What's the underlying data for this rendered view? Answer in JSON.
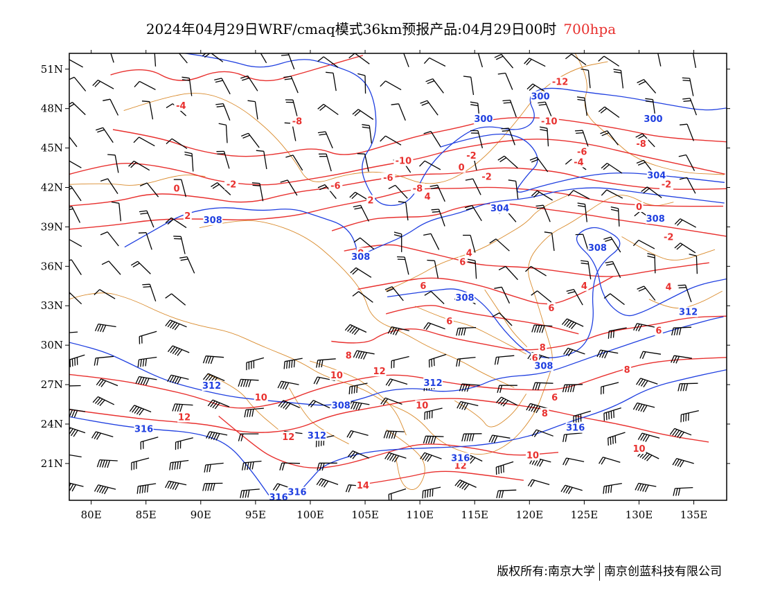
{
  "title": {
    "main": "2024年04月29日WRF/cmaq模式36km预报产品:04月29日00时",
    "level": "700hpa"
  },
  "copyright": {
    "left": "版权所有:南京大学",
    "right": "南京创蓝科技有限公司"
  },
  "map": {
    "lon_range": [
      78,
      138
    ],
    "lat_range": [
      18.2,
      52.2
    ],
    "lon_ticks": [
      {
        "value": 80,
        "label": "80E"
      },
      {
        "value": 85,
        "label": "85E"
      },
      {
        "value": 90,
        "label": "90E"
      },
      {
        "value": 95,
        "label": "95E"
      },
      {
        "value": 100,
        "label": "100E"
      },
      {
        "value": 105,
        "label": "105E"
      },
      {
        "value": 110,
        "label": "110E"
      },
      {
        "value": 115,
        "label": "115E"
      },
      {
        "value": 120,
        "label": "120E"
      },
      {
        "value": 125,
        "label": "125E"
      },
      {
        "value": 130,
        "label": "130E"
      },
      {
        "value": 135,
        "label": "135E"
      }
    ],
    "lat_ticks": [
      {
        "value": 51,
        "label": "51N"
      },
      {
        "value": 48,
        "label": "48N"
      },
      {
        "value": 45,
        "label": "45N"
      },
      {
        "value": 42,
        "label": "42N"
      },
      {
        "value": 39,
        "label": "39N"
      },
      {
        "value": 36,
        "label": "36N"
      },
      {
        "value": 33,
        "label": "33N"
      },
      {
        "value": 30,
        "label": "30N"
      },
      {
        "value": 27,
        "label": "27N"
      },
      {
        "value": 24,
        "label": "24N"
      },
      {
        "value": 21,
        "label": "21N"
      }
    ],
    "colors": {
      "temperature": "#e8302e",
      "geopotential": "#1f3fe0",
      "border": "#d98a2b",
      "wind": "#000000",
      "level_text": "#e8302e"
    },
    "temperature_labels": [
      {
        "text": "-4",
        "lon": 88.2,
        "lat": 48.2
      },
      {
        "text": "-8",
        "lon": 98.8,
        "lat": 47.0
      },
      {
        "text": "-12",
        "lon": 122.8,
        "lat": 50.0
      },
      {
        "text": "-10",
        "lon": 121.8,
        "lat": 47.0
      },
      {
        "text": "-8",
        "lon": 130.2,
        "lat": 45.3
      },
      {
        "text": "-6",
        "lon": 124.8,
        "lat": 44.7
      },
      {
        "text": "-10",
        "lon": 108.5,
        "lat": 44.0
      },
      {
        "text": "-2",
        "lon": 114.7,
        "lat": 44.4
      },
      {
        "text": "-4",
        "lon": 124.5,
        "lat": 43.9
      },
      {
        "text": "0",
        "lon": 113.8,
        "lat": 43.5
      },
      {
        "text": "-2",
        "lon": 116.1,
        "lat": 42.8
      },
      {
        "text": "-6",
        "lon": 107.1,
        "lat": 42.7
      },
      {
        "text": "-6",
        "lon": 102.3,
        "lat": 42.1
      },
      {
        "text": "-8",
        "lon": 109.8,
        "lat": 41.9
      },
      {
        "text": "-2",
        "lon": 132.5,
        "lat": 42.2
      },
      {
        "text": "-2",
        "lon": 92.8,
        "lat": 42.2
      },
      {
        "text": "0",
        "lon": 87.8,
        "lat": 41.9
      },
      {
        "text": "4",
        "lon": 110.7,
        "lat": 41.3
      },
      {
        "text": "2",
        "lon": 105.5,
        "lat": 41.0
      },
      {
        "text": "2",
        "lon": 88.8,
        "lat": 39.8
      },
      {
        "text": "0",
        "lon": 130.0,
        "lat": 40.5
      },
      {
        "text": "-2",
        "lon": 132.7,
        "lat": 38.2
      },
      {
        "text": "0",
        "lon": 104.6,
        "lat": 37.0
      },
      {
        "text": "4",
        "lon": 114.5,
        "lat": 37.0
      },
      {
        "text": "6",
        "lon": 113.9,
        "lat": 36.3
      },
      {
        "text": "6",
        "lon": 110.3,
        "lat": 34.5
      },
      {
        "text": "4",
        "lon": 125.0,
        "lat": 34.5
      },
      {
        "text": "4",
        "lon": 132.7,
        "lat": 34.4
      },
      {
        "text": "6",
        "lon": 122.0,
        "lat": 32.8
      },
      {
        "text": "6",
        "lon": 112.7,
        "lat": 31.8
      },
      {
        "text": "6",
        "lon": 131.8,
        "lat": 31.1
      },
      {
        "text": "8",
        "lon": 121.2,
        "lat": 29.8
      },
      {
        "text": "8",
        "lon": 103.5,
        "lat": 29.2
      },
      {
        "text": "6",
        "lon": 120.5,
        "lat": 29.0
      },
      {
        "text": "8",
        "lon": 128.9,
        "lat": 28.1
      },
      {
        "text": "12",
        "lon": 106.3,
        "lat": 28.0
      },
      {
        "text": "10",
        "lon": 102.4,
        "lat": 27.7
      },
      {
        "text": "6",
        "lon": 122.3,
        "lat": 26.0
      },
      {
        "text": "10",
        "lon": 95.5,
        "lat": 26.0
      },
      {
        "text": "12",
        "lon": 88.5,
        "lat": 24.5
      },
      {
        "text": "10",
        "lon": 110.2,
        "lat": 25.4
      },
      {
        "text": "8",
        "lon": 121.4,
        "lat": 24.8
      },
      {
        "text": "12",
        "lon": 98.0,
        "lat": 23.0
      },
      {
        "text": "10",
        "lon": 130.0,
        "lat": 22.1
      },
      {
        "text": "10",
        "lon": 120.3,
        "lat": 21.6
      },
      {
        "text": "12",
        "lon": 113.7,
        "lat": 20.8
      },
      {
        "text": "14",
        "lon": 104.8,
        "lat": 19.3
      }
    ],
    "geopotential_labels": [
      {
        "text": "300",
        "lon": 121.0,
        "lat": 48.9
      },
      {
        "text": "300",
        "lon": 115.8,
        "lat": 47.2
      },
      {
        "text": "300",
        "lon": 131.3,
        "lat": 47.2
      },
      {
        "text": "304",
        "lon": 131.6,
        "lat": 42.9
      },
      {
        "text": "308",
        "lon": 91.1,
        "lat": 39.5
      },
      {
        "text": "304",
        "lon": 117.3,
        "lat": 40.4
      },
      {
        "text": "308",
        "lon": 131.5,
        "lat": 39.6
      },
      {
        "text": "308",
        "lon": 104.6,
        "lat": 36.7
      },
      {
        "text": "308",
        "lon": 126.2,
        "lat": 37.4
      },
      {
        "text": "308",
        "lon": 114.1,
        "lat": 33.6
      },
      {
        "text": "312",
        "lon": 134.5,
        "lat": 32.5
      },
      {
        "text": "308",
        "lon": 121.3,
        "lat": 28.4
      },
      {
        "text": "312",
        "lon": 91.0,
        "lat": 26.9
      },
      {
        "text": "312",
        "lon": 111.2,
        "lat": 27.1
      },
      {
        "text": "308",
        "lon": 102.8,
        "lat": 25.4
      },
      {
        "text": "316",
        "lon": 84.8,
        "lat": 23.6
      },
      {
        "text": "312",
        "lon": 100.6,
        "lat": 23.1
      },
      {
        "text": "316",
        "lon": 124.2,
        "lat": 23.7
      },
      {
        "text": "316",
        "lon": 113.7,
        "lat": 21.4
      },
      {
        "text": "316",
        "lon": 97.1,
        "lat": 18.4
      },
      {
        "text": "316",
        "lon": 98.8,
        "lat": 18.8
      }
    ],
    "wind_barbs_shown": true
  }
}
